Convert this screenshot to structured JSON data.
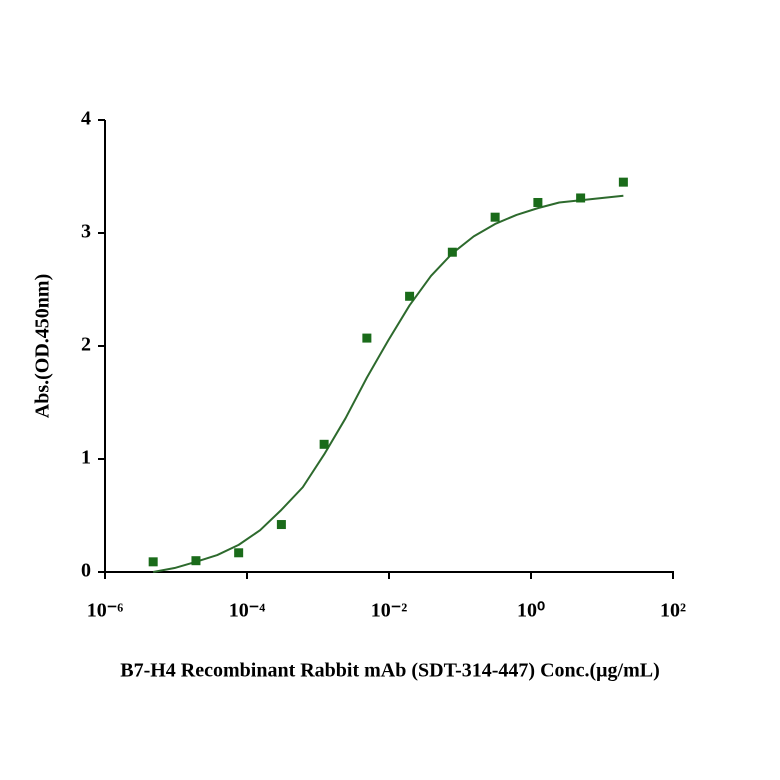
{
  "chart_data": {
    "type": "scatter",
    "x_label": "B7-H4 Recombinant Rabbit mAb (SDT-314-447) Conc.(μg/mL)",
    "y_label": "Abs.(OD.450nm)",
    "x_log": true,
    "color": "#1a6b1a",
    "x": [
      4.77e-06,
      1.91e-05,
      7.63e-05,
      0.000305,
      0.00122,
      0.00488,
      0.0195,
      0.078,
      0.3125,
      1.25,
      5,
      20
    ],
    "values": [
      0.09,
      0.1,
      0.17,
      0.42,
      1.13,
      2.07,
      2.44,
      2.83,
      3.14,
      3.27,
      3.31,
      3.45
    ],
    "curve": {
      "color": "#2d6a2d",
      "x": [
        4.77e-06,
        9.54e-06,
        1.91e-05,
        3.81e-05,
        7.63e-05,
        0.000153,
        0.000305,
        0.00061,
        0.00122,
        0.00244,
        0.00488,
        0.00977,
        0.0195,
        0.039,
        0.078,
        0.156,
        0.3125,
        0.625,
        1.25,
        2.5,
        5,
        10,
        20
      ],
      "values": [
        0.0,
        0.035,
        0.09,
        0.15,
        0.24,
        0.37,
        0.55,
        0.75,
        1.04,
        1.36,
        1.72,
        2.05,
        2.36,
        2.62,
        2.82,
        2.97,
        3.08,
        3.16,
        3.22,
        3.27,
        3.29,
        3.31,
        3.33
      ]
    },
    "xlim": [
      1e-06,
      100
    ],
    "xticks": [
      {
        "value": 1e-06,
        "label": "10⁻⁶"
      },
      {
        "value": 0.0001,
        "label": "10⁻⁴"
      },
      {
        "value": 0.01,
        "label": "10⁻²"
      },
      {
        "value": 1,
        "label": "10⁰"
      },
      {
        "value": 100,
        "label": "10²"
      }
    ],
    "ylim": [
      0,
      4
    ],
    "yticks": [
      0,
      1,
      2,
      3,
      4
    ]
  }
}
